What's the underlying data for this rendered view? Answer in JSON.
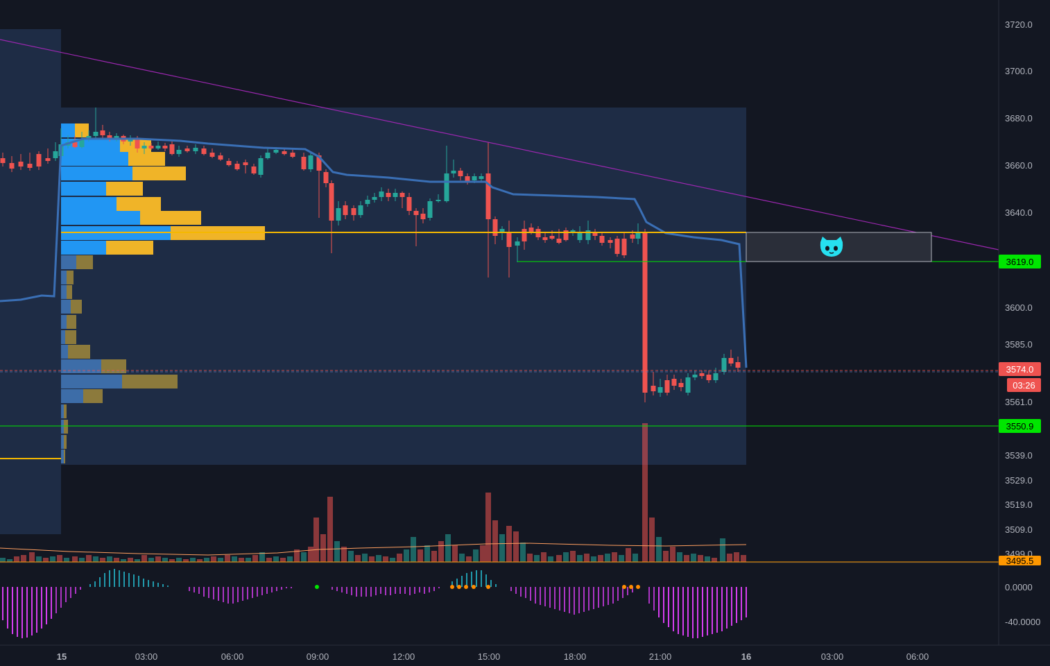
{
  "colors": {
    "background": "#131722",
    "session_box": "#1e2c45",
    "up": "#26a69a",
    "down": "#ef5350",
    "vwap": "#3a6fb5",
    "trendline": "#9c27b0",
    "poc_line": "#f5b800",
    "support_line": "#00e600",
    "vp_up": "#2196f3",
    "vp_down": "#f0b428",
    "vp_up_dim": "#3d6da8",
    "vp_down_dim": "#8c7a3c",
    "osc_pos": "#26c6da",
    "osc_neg": "#e040fb",
    "osc_dot_orange": "#ff8c00",
    "osc_dot_green": "#00e600"
  },
  "price_axis": {
    "min": 3495.5,
    "max": 3725,
    "labels": [
      "3720.0",
      "3700.0",
      "3680.0",
      "3660.0",
      "3640.0",
      "3600.0",
      "3585.0",
      "3561.0",
      "3539.0",
      "3529.0",
      "3519.0",
      "3509.0",
      "3499.0"
    ]
  },
  "price_tags": {
    "resistance": {
      "value": "3619.0",
      "color": "#00e600",
      "text_color": "#000000"
    },
    "current": {
      "value": "3574.0",
      "color": "#ef5350",
      "text_color": "#ffffff"
    },
    "countdown": {
      "value": "03:26",
      "color": "#ef5350",
      "text_color": "#ffffff"
    },
    "support": {
      "value": "3550.9",
      "color": "#00e600",
      "text_color": "#000000"
    },
    "bottom": {
      "value": "3495.5",
      "color": "#ff9800",
      "text_color": "#000000"
    }
  },
  "oscillator_axis": {
    "labels": [
      "0.0000",
      "-40.0000"
    ]
  },
  "time_axis": {
    "labels": [
      {
        "text": "15",
        "bold": true
      },
      {
        "text": "03:00",
        "bold": false
      },
      {
        "text": "06:00",
        "bold": false
      },
      {
        "text": "09:00",
        "bold": false
      },
      {
        "text": "12:00",
        "bold": false
      },
      {
        "text": "15:00",
        "bold": false
      },
      {
        "text": "18:00",
        "bold": false
      },
      {
        "text": "21:00",
        "bold": false
      },
      {
        "text": "16",
        "bold": true
      },
      {
        "text": "03:00",
        "bold": false
      },
      {
        "text": "06:00",
        "bold": false
      }
    ]
  },
  "levels": {
    "poc": 3631,
    "resistance": 3619.0,
    "support": 3550.9,
    "current": 3574.0
  },
  "annotation": {
    "icon": "cat-face-icon",
    "color": "#26e0f0"
  }
}
